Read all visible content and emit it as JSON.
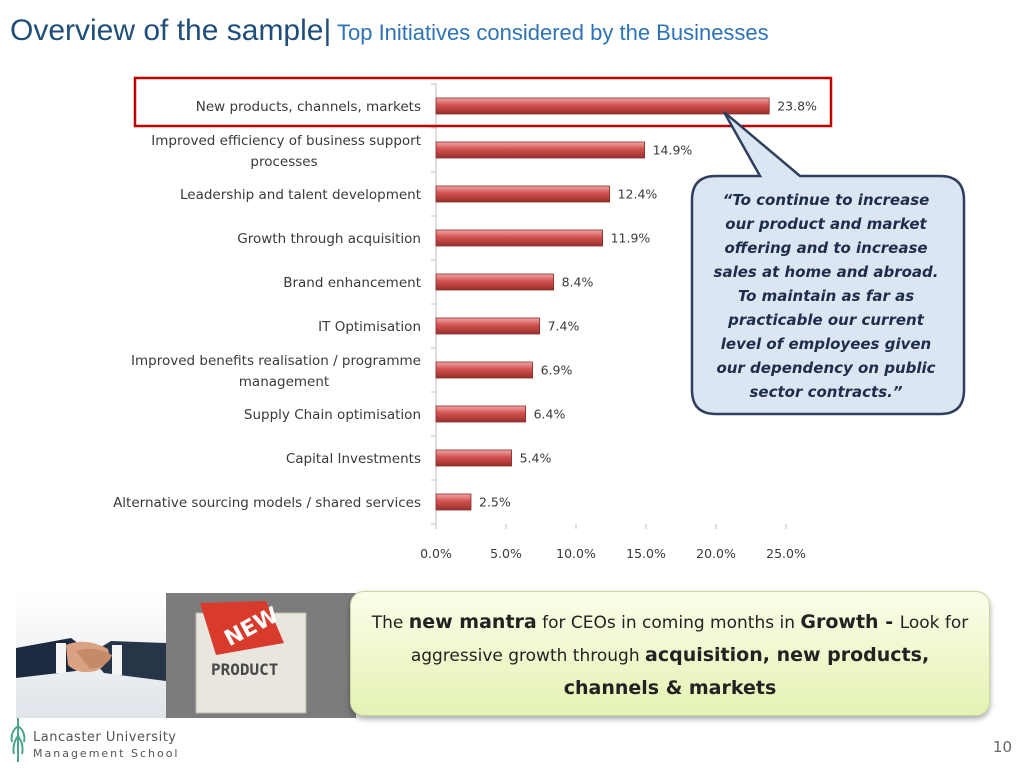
{
  "slide": {
    "title_main": "Overview of the sample|",
    "title_sub": " Top Initiatives considered by the Businesses",
    "page_number": "10"
  },
  "chart_data": {
    "type": "bar",
    "orientation": "horizontal",
    "categories": [
      [
        "New products, channels, markets"
      ],
      [
        "Improved efficiency of business support",
        "processes"
      ],
      [
        "Leadership and talent development"
      ],
      [
        "Growth through acquisition"
      ],
      [
        "Brand enhancement"
      ],
      [
        "IT Optimisation"
      ],
      [
        "Improved benefits realisation / programme",
        "management"
      ],
      [
        "Supply Chain optimisation"
      ],
      [
        "Capital Investments"
      ],
      [
        "Alternative sourcing models / shared services"
      ]
    ],
    "values": [
      23.8,
      14.9,
      12.4,
      11.9,
      8.4,
      7.4,
      6.9,
      6.4,
      5.4,
      2.5
    ],
    "value_labels": [
      "23.8%",
      "14.9%",
      "12.4%",
      "11.9%",
      "8.4%",
      "7.4%",
      "6.9%",
      "6.4%",
      "5.4%",
      "2.5%"
    ],
    "xlim": [
      0,
      25
    ],
    "ticks": [
      "0.0%",
      "5.0%",
      "10.0%",
      "15.0%",
      "20.0%",
      "25.0%"
    ],
    "highlighted_category": "New products, channels, markets",
    "bar_color": "#c0504d",
    "highlight_border_color": "#c00000"
  },
  "quote": {
    "lines": [
      "“To continue to increase",
      "our product and market",
      "offering and to increase",
      "sales at home and abroad.",
      "To maintain as far as",
      "practicable our current",
      "level of employees given",
      "our dependency on public",
      "sector contracts.”"
    ],
    "fill_color": "#dce6f2",
    "border_color": "#2f3f5e"
  },
  "mantra": {
    "part1": "The ",
    "bold1": "new mantra",
    "part2": " for CEOs in coming months in ",
    "bold2": "Growth - ",
    "part3": " Look for aggressive growth through ",
    "bold3": "acquisition, new products, channels & markets"
  },
  "photos": {
    "new_label": "NEW",
    "product_label": "PRODUCT"
  },
  "logo": {
    "line1": "Lancaster University",
    "line2": "Management School"
  }
}
